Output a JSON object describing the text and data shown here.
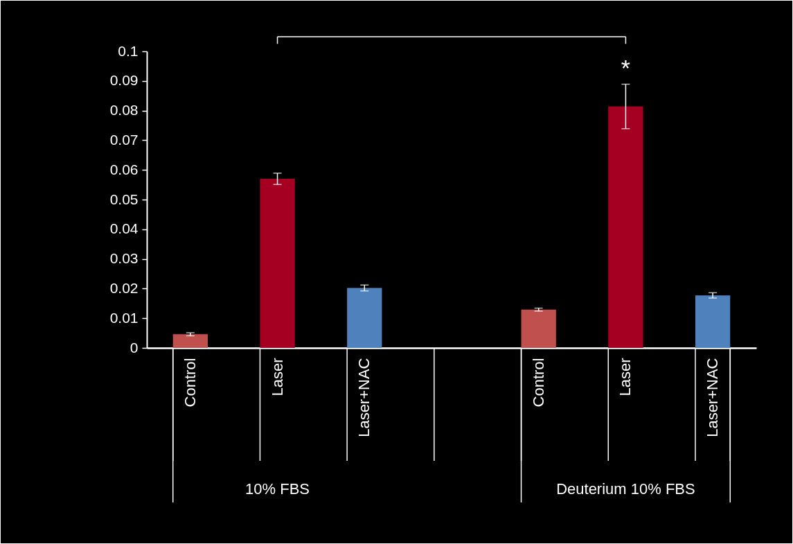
{
  "chart_data": {
    "type": "bar",
    "categories": [
      "Control",
      "Laser",
      "Laser+NAC",
      null,
      "Control",
      "Laser",
      "Laser+NAC"
    ],
    "values": [
      0.0046,
      0.057,
      0.0202,
      null,
      0.0129,
      0.0814,
      0.0177
    ],
    "errors": [
      0.0005,
      0.0019,
      0.001,
      null,
      0.0005,
      0.0075,
      0.0009
    ],
    "colors": [
      "#c0504d",
      "#a50021",
      "#4f81bd",
      null,
      "#c0504d",
      "#a50021",
      "#4f81bd"
    ],
    "ylim": [
      0,
      0.1
    ],
    "yticks": [
      0,
      0.01,
      0.02,
      0.03,
      0.04,
      0.05,
      0.06,
      0.07,
      0.08,
      0.09,
      0.1
    ],
    "annotations": [
      "10% FBS",
      "Deuterium 10% FBS",
      "*"
    ],
    "grid": false
  }
}
